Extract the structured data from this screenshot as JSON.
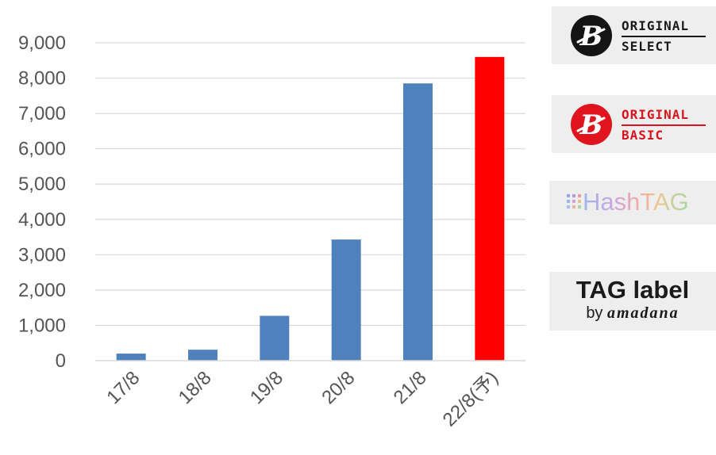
{
  "chart_data": {
    "type": "bar",
    "categories": [
      "17/8",
      "18/8",
      "19/8",
      "20/8",
      "21/8",
      "22/8(予)"
    ],
    "values": [
      200,
      310,
      1270,
      3430,
      7850,
      8600
    ],
    "bar_colors": [
      "#4f81bd",
      "#4f81bd",
      "#4f81bd",
      "#4f81bd",
      "#4f81bd",
      "#ff0000"
    ],
    "ylim": [
      0,
      9000
    ],
    "yticks": [
      0,
      1000,
      2000,
      3000,
      4000,
      5000,
      6000,
      7000,
      8000,
      9000
    ],
    "ytick_labels": [
      "0",
      "1,000",
      "2,000",
      "3,000",
      "4,000",
      "5,000",
      "6,000",
      "7,000",
      "8,000",
      "9,000"
    ],
    "grid": true,
    "x_label_rotation": "-45deg",
    "title": "",
    "xlabel": "",
    "ylabel": ""
  },
  "logos": {
    "original_select": {
      "line1": "ORIGINAL",
      "line2": "SELECT"
    },
    "original_basic": {
      "line1": "ORIGINAL",
      "line2": "BASIC"
    },
    "hashtag": {
      "text": "HashTAG"
    },
    "tag_label": {
      "title": "TAG label",
      "by": "by",
      "brand": "amadana"
    }
  }
}
